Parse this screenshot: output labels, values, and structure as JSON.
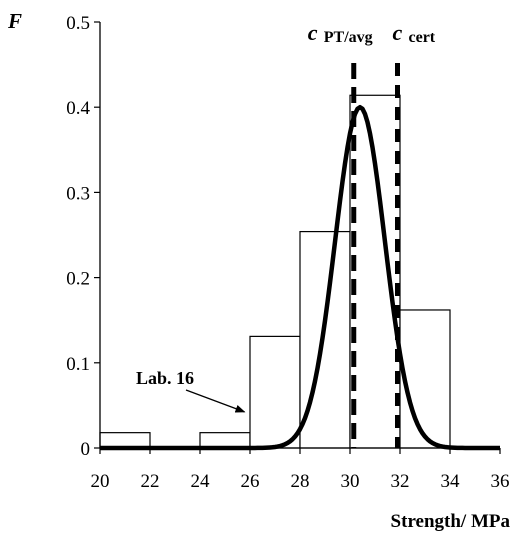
{
  "chart_data": {
    "type": "bar",
    "title": "",
    "ylabel": "F",
    "xlabel": "Strength/ MPa",
    "xlim": [
      20,
      36
    ],
    "ylim": [
      0,
      0.5
    ],
    "x_ticks": [
      "20",
      "22",
      "24",
      "26",
      "28",
      "30",
      "32",
      "34",
      "36"
    ],
    "y_ticks": [
      "0",
      "0.1",
      "0.2",
      "0.3",
      "0.4",
      "0.5"
    ],
    "bins": [
      {
        "from": 20,
        "to": 22,
        "value": 0.018
      },
      {
        "from": 22,
        "to": 24,
        "value": 0
      },
      {
        "from": 24,
        "to": 26,
        "value": 0.018
      },
      {
        "from": 26,
        "to": 28,
        "value": 0.131
      },
      {
        "from": 28,
        "to": 30,
        "value": 0.254
      },
      {
        "from": 30,
        "to": 32,
        "value": 0.414
      },
      {
        "from": 32,
        "to": 34,
        "value": 0.162
      },
      {
        "from": 34,
        "to": 36,
        "value": 0
      }
    ],
    "normal_curve": {
      "mean": 30.4,
      "peak": 0.4
    },
    "reference_lines": [
      {
        "symbol": "c",
        "subscript": "PT/avg",
        "x": 30.15
      },
      {
        "symbol": "c",
        "subscript": "cert",
        "x": 31.9
      }
    ],
    "annotations": [
      {
        "text": "Lab. 16",
        "target": {
          "x": 25.9,
          "y": 0.04
        }
      }
    ],
    "grid": false,
    "legend": "none"
  }
}
